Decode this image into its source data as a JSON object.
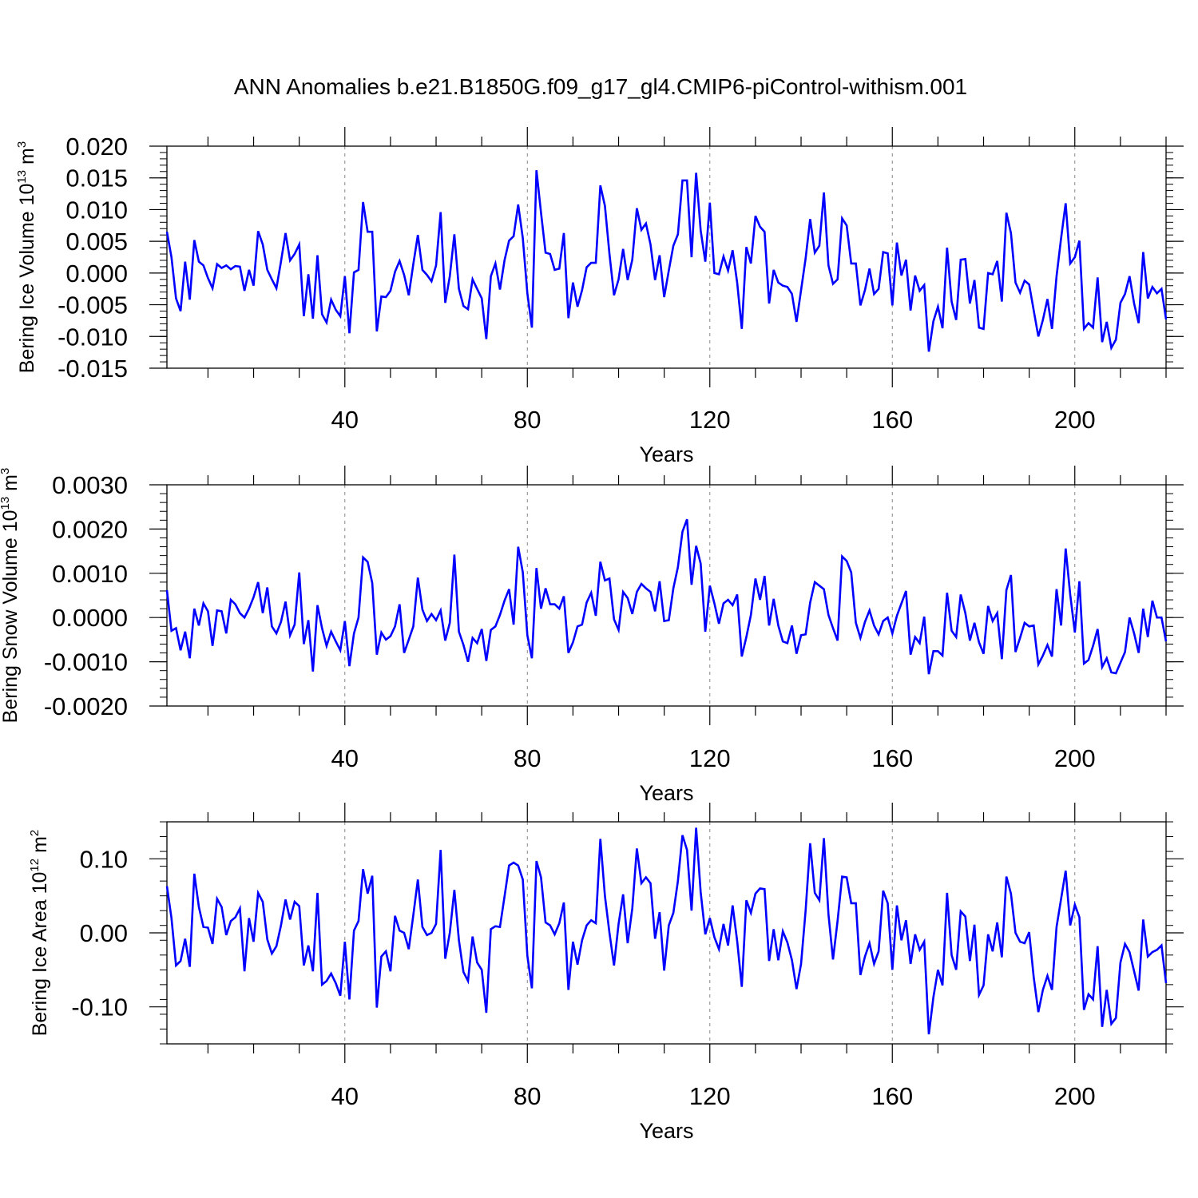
{
  "figure": {
    "title": "ANN Anomalies b.e21.B1850G.f09_g17_gl4.CMIP6-piControl-withism.001"
  },
  "chart_data": [
    {
      "type": "line",
      "ylabel_base": "Bering Ice Volume 10",
      "ylabel_exp": "13",
      "ylabel_unit": " m",
      "ylabel_unit_exp": "3",
      "xlabel": "Years",
      "xlim": [
        1,
        220
      ],
      "ylim": [
        -0.015,
        0.02
      ],
      "yticks": [
        -0.015,
        -0.01,
        -0.005,
        0.0,
        0.005,
        0.01,
        0.015,
        0.02
      ],
      "ytick_labels": [
        "-0.015",
        "-0.010",
        "-0.005",
        "0.000",
        "0.005",
        "0.010",
        "0.015",
        "0.020"
      ],
      "yminor_step": 0.001,
      "xticks": [
        40,
        80,
        120,
        160,
        200
      ],
      "xtick_labels": [
        "40",
        "80",
        "120",
        "160",
        "200"
      ],
      "xminor_step": 10,
      "vgrid": [
        40,
        80,
        120,
        160,
        200
      ],
      "line_color": "#0000ff",
      "series": [
        {
          "x_start": 1,
          "x_step": 1,
          "values": [
            0.0065,
            0.0025,
            -0.004,
            -0.006,
            0.0018,
            -0.0042,
            0.0052,
            0.0018,
            0.0012,
            -0.0008,
            -0.0024,
            0.0014,
            0.0008,
            0.0012,
            0.0006,
            0.0011,
            0.001,
            -0.0028,
            0.0005,
            -0.002,
            0.0066,
            0.0045,
            0.0005,
            -0.001,
            -0.0024,
            0.0018,
            0.0063,
            0.002,
            0.003,
            0.0045,
            -0.0068,
            -0.0002,
            -0.0072,
            0.0028,
            -0.0065,
            -0.0078,
            -0.0042,
            -0.0058,
            -0.0068,
            -0.0005,
            -0.0095,
            0.0001,
            0.0005,
            0.0112,
            0.0065,
            0.0065,
            -0.0092,
            -0.0037,
            -0.0038,
            -0.0028,
            0.0002,
            0.0019,
            -0.0003,
            -0.0035,
            0.0014,
            0.006,
            0.0005,
            -0.0003,
            -0.0013,
            0.0012,
            0.0096,
            -0.0047,
            -0.0005,
            0.0061,
            -0.0025,
            -0.0052,
            -0.0057,
            -0.001,
            -0.0025,
            -0.004,
            -0.0104,
            -0.0005,
            0.0015,
            -0.0026,
            0.002,
            0.0051,
            0.0058,
            0.0108,
            0.0055,
            -0.0032,
            -0.0086,
            0.0162,
            0.0095,
            0.0032,
            0.003,
            0.0005,
            0.0007,
            0.0063,
            -0.0071,
            -0.0015,
            -0.0053,
            -0.0027,
            0.0009,
            0.0016,
            0.0016,
            0.0138,
            0.0106,
            0.003,
            -0.0035,
            -0.001,
            0.0038,
            -0.0011,
            0.0021,
            0.0102,
            0.0068,
            0.0078,
            0.0045,
            -0.0011,
            0.0028,
            -0.0038,
            0.0004,
            0.0043,
            0.0061,
            0.0146,
            0.0146,
            0.0025,
            0.0158,
            0.0067,
            0.0018,
            0.0111,
            0.0,
            -0.0002,
            0.0026,
            0.0004,
            0.0036,
            -0.0015,
            -0.0088,
            0.0041,
            0.0015,
            0.009,
            0.0073,
            0.0065,
            -0.0048,
            0.0005,
            -0.0015,
            -0.002,
            -0.0022,
            -0.0033,
            -0.0077,
            -0.0027,
            0.0023,
            0.0085,
            0.0032,
            0.0043,
            0.0127,
            0.0012,
            -0.0017,
            -0.001,
            0.0086,
            0.0075,
            0.0015,
            0.0015,
            -0.0051,
            -0.0027,
            0.0007,
            -0.0033,
            -0.0025,
            0.0033,
            0.0031,
            -0.0051,
            0.0048,
            -0.0004,
            0.0021,
            -0.0059,
            -0.0004,
            -0.0028,
            -0.0019,
            -0.0124,
            -0.0076,
            -0.0053,
            -0.0087,
            0.004,
            -0.0045,
            -0.0074,
            0.0021,
            0.0022,
            -0.0048,
            -0.0011,
            -0.0086,
            -0.0088,
            0.0,
            -0.0002,
            0.0019,
            -0.0045,
            0.0095,
            0.0063,
            -0.0015,
            -0.0031,
            -0.0012,
            -0.0018,
            -0.0059,
            -0.01,
            -0.0074,
            -0.0041,
            -0.0088,
            -0.0005,
            0.0055,
            0.011,
            0.0015,
            0.0025,
            0.0051,
            -0.0088,
            -0.0079,
            -0.0086,
            -0.0007,
            -0.0109,
            -0.0077,
            -0.0118,
            -0.0105,
            -0.0047,
            -0.0033,
            -0.0005,
            -0.0048,
            -0.0079,
            0.0033,
            -0.004,
            -0.0022,
            -0.0032,
            -0.0025,
            -0.0073
          ]
        }
      ]
    },
    {
      "type": "line",
      "ylabel_base": "Bering Snow Volume 10",
      "ylabel_exp": "13",
      "ylabel_unit": " m",
      "ylabel_unit_exp": "3",
      "xlabel": "Years",
      "xlim": [
        1,
        220
      ],
      "ylim": [
        -0.002,
        0.003
      ],
      "yticks": [
        -0.002,
        -0.001,
        0.0,
        0.001,
        0.002,
        0.003
      ],
      "ytick_labels": [
        "-0.0020",
        "-0.0010",
        "0.0000",
        "0.0010",
        "0.0020",
        "0.0030"
      ],
      "yminor_step": 0.0002,
      "xticks": [
        40,
        80,
        120,
        160,
        200
      ],
      "xtick_labels": [
        "40",
        "80",
        "120",
        "160",
        "200"
      ],
      "xminor_step": 10,
      "vgrid": [
        40,
        80,
        120,
        160,
        200
      ],
      "line_color": "#0000ff",
      "series": [
        {
          "x_start": 1,
          "x_step": 1,
          "values": [
            0.00062,
            -0.0003,
            -0.00024,
            -0.00074,
            -0.00032,
            -0.00092,
            0.0002,
            -0.00018,
            0.00032,
            0.00014,
            -0.00064,
            0.00016,
            0.00014,
            -0.00036,
            0.0004,
            0.0003,
            0.0001,
            0.0,
            0.0002,
            0.00046,
            0.0008,
            0.0001,
            0.00068,
            -0.0002,
            -0.00036,
            -0.0001,
            0.00036,
            -0.0004,
            -0.00016,
            0.00102,
            -0.0006,
            -6e-05,
            -0.00122,
            0.00028,
            -0.00024,
            -0.00064,
            -0.00032,
            -0.00054,
            -0.00074,
            -8e-05,
            -0.0011,
            -0.00036,
            0.0,
            0.00136,
            0.00126,
            0.00078,
            -0.00084,
            -0.00034,
            -0.0005,
            -0.00042,
            -0.0002,
            0.0003,
            -0.0008,
            -0.0005,
            -0.0002,
            0.0009,
            0.00018,
            -8e-05,
            8e-05,
            -6e-05,
            0.00016,
            -0.00052,
            -0.00012,
            0.00142,
            -0.00032,
            -0.00062,
            -0.001,
            -0.00046,
            -0.00058,
            -0.00026,
            -0.00098,
            -0.00028,
            -0.0002,
            6e-05,
            0.00038,
            0.00064,
            -0.00016,
            0.0016,
            0.00102,
            -0.0004,
            -0.00092,
            0.00112,
            0.0002,
            0.00066,
            0.0003,
            0.0003,
            0.0002,
            0.00048,
            -0.0008,
            -0.00056,
            -0.0002,
            -0.00016,
            0.00034,
            0.00056,
            4e-05,
            0.00126,
            0.00084,
            0.00088,
            -4e-05,
            -0.00028,
            0.00058,
            0.00044,
            8e-05,
            0.00058,
            0.00076,
            0.00066,
            0.00058,
            0.00014,
            0.00082,
            -8e-05,
            -6e-05,
            0.00066,
            0.00114,
            0.00194,
            0.00222,
            0.00074,
            0.00162,
            0.00122,
            -0.00032,
            0.00072,
            0.00032,
            -0.00014,
            0.00032,
            0.0004,
            0.00028,
            0.00052,
            -0.00088,
            -0.00044,
            6e-05,
            0.00088,
            0.0004,
            0.00094,
            -0.00018,
            0.00042,
            -0.00018,
            -0.00054,
            -0.00058,
            -0.00018,
            -0.00082,
            -0.0004,
            -0.00038,
            0.00034,
            0.0008,
            0.00072,
            0.00064,
            6e-05,
            -0.00024,
            -0.00052,
            0.00138,
            0.00128,
            0.00102,
            -0.00012,
            -0.00046,
            -0.0001,
            0.00016,
            -0.00018,
            -0.00038,
            -8e-05,
            0.0,
            -0.00036,
            4e-05,
            0.00032,
            0.0006,
            -0.00084,
            -0.00044,
            -0.00058,
            2e-05,
            -0.00128,
            -0.00076,
            -0.00076,
            -0.00086,
            0.00056,
            -0.0003,
            -0.00044,
            0.00052,
            0.0001,
            -0.00052,
            -0.00012,
            -0.00056,
            -0.00082,
            0.00026,
            -8e-05,
            0.0001,
            -0.00094,
            0.00062,
            0.00096,
            -0.00078,
            -0.00046,
            -0.00012,
            -0.0002,
            -0.00018,
            -0.00106,
            -0.00086,
            -0.00062,
            -0.00088,
            0.00064,
            -0.00018,
            0.00156,
            0.00052,
            -0.00034,
            0.00082,
            -0.00104,
            -0.00096,
            -0.00064,
            -0.00026,
            -0.00112,
            -0.00092,
            -0.00124,
            -0.00126,
            -0.00102,
            -0.00078,
            0.0,
            -0.00036,
            -0.0008,
            0.0002,
            -0.00044,
            0.00038,
            0.0,
            0.0,
            -0.00054
          ]
        }
      ]
    },
    {
      "type": "line",
      "ylabel_base": "Bering Ice Area 10",
      "ylabel_exp": "12",
      "ylabel_unit": " m",
      "ylabel_unit_exp": "2",
      "xlabel": "Years",
      "xlim": [
        1,
        220
      ],
      "ylim": [
        -0.15,
        0.15
      ],
      "yticks": [
        -0.1,
        0.0,
        0.1
      ],
      "ytick_labels": [
        "-0.10",
        "0.00",
        "0.10"
      ],
      "yminor_step": 0.02,
      "xticks": [
        40,
        80,
        120,
        160,
        200
      ],
      "xtick_labels": [
        "40",
        "80",
        "120",
        "160",
        "200"
      ],
      "xminor_step": 10,
      "vgrid": [
        40,
        80,
        120,
        160,
        200
      ],
      "line_color": "#0000ff",
      "series": [
        {
          "x_start": 1,
          "x_step": 1,
          "values": [
            0.063,
            0.02,
            -0.044,
            -0.038,
            -0.008,
            -0.046,
            0.08,
            0.035,
            0.008,
            0.007,
            -0.015,
            0.046,
            0.035,
            -0.003,
            0.016,
            0.021,
            0.033,
            -0.052,
            0.02,
            -0.012,
            0.054,
            0.042,
            -0.009,
            -0.028,
            -0.018,
            0.01,
            0.045,
            0.018,
            0.042,
            0.036,
            -0.044,
            -0.017,
            -0.052,
            0.054,
            -0.07,
            -0.065,
            -0.055,
            -0.068,
            -0.085,
            -0.012,
            -0.09,
            0.003,
            0.016,
            0.086,
            0.053,
            0.077,
            -0.101,
            -0.032,
            -0.025,
            -0.052,
            0.023,
            0.003,
            0.0,
            -0.022,
            0.024,
            0.072,
            0.008,
            -0.003,
            0.0,
            0.012,
            0.112,
            -0.035,
            0.0,
            0.058,
            -0.01,
            -0.053,
            -0.065,
            -0.005,
            -0.04,
            -0.05,
            -0.108,
            0.005,
            0.009,
            0.008,
            0.049,
            0.091,
            0.095,
            0.091,
            0.072,
            -0.031,
            -0.075,
            0.097,
            0.075,
            0.014,
            0.01,
            -0.002,
            0.013,
            0.041,
            -0.077,
            -0.012,
            -0.043,
            -0.01,
            0.01,
            0.017,
            0.013,
            0.127,
            0.05,
            0.0,
            -0.044,
            0.012,
            0.052,
            -0.014,
            0.033,
            0.114,
            0.067,
            0.075,
            0.067,
            -0.008,
            0.028,
            -0.051,
            0.01,
            0.027,
            0.07,
            0.132,
            0.112,
            0.03,
            0.142,
            0.055,
            -0.002,
            0.02,
            -0.006,
            -0.022,
            0.012,
            -0.017,
            0.037,
            -0.011,
            -0.073,
            0.044,
            0.027,
            0.053,
            0.06,
            0.059,
            -0.038,
            0.005,
            -0.037,
            0.002,
            -0.013,
            -0.037,
            -0.076,
            -0.042,
            0.03,
            0.121,
            0.054,
            0.044,
            0.128,
            0.025,
            -0.036,
            0.016,
            0.076,
            0.075,
            0.04,
            0.04,
            -0.057,
            -0.032,
            -0.014,
            -0.042,
            -0.025,
            0.057,
            0.04,
            -0.05,
            0.037,
            -0.01,
            0.017,
            -0.042,
            -0.002,
            -0.023,
            -0.012,
            -0.137,
            -0.087,
            -0.05,
            -0.071,
            0.054,
            -0.03,
            -0.05,
            0.029,
            0.022,
            -0.038,
            0.011,
            -0.084,
            -0.071,
            -0.002,
            -0.025,
            0.014,
            -0.033,
            0.076,
            0.053,
            0.0,
            -0.012,
            -0.014,
            0.001,
            -0.06,
            -0.107,
            -0.077,
            -0.058,
            -0.077,
            0.008,
            0.046,
            0.084,
            0.01,
            0.038,
            0.021,
            -0.104,
            -0.083,
            -0.09,
            -0.018,
            -0.127,
            -0.077,
            -0.123,
            -0.115,
            -0.04,
            -0.015,
            -0.026,
            -0.052,
            -0.078,
            0.018,
            -0.032,
            -0.026,
            -0.023,
            -0.017,
            -0.068
          ]
        }
      ]
    }
  ]
}
